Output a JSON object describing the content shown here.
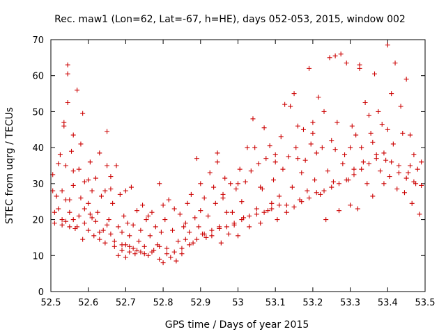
{
  "chart_data": {
    "type": "scatter",
    "title": "Rec. maw1 (Lon=62, Lat=-67, h=HE), days 052-053, 2015, window 002",
    "xlabel": "GPS time / Days of year 2015",
    "ylabel": "STEC from uqrg / TECUs",
    "xlim": [
      52.5,
      53.5
    ],
    "ylim": [
      0,
      70
    ],
    "xticks": [
      "52.5",
      "52.6",
      "52.7",
      "52.8",
      "52.9",
      "53",
      "53.1",
      "53.2",
      "53.3",
      "53.4",
      "53.5"
    ],
    "yticks": [
      "0",
      "10",
      "20",
      "30",
      "40",
      "50",
      "60",
      "70"
    ],
    "grid": false,
    "marker": "plus",
    "marker_color": "#cc0000",
    "series": [
      {
        "points": [
          [
            52.505,
            32.5
          ],
          [
            52.505,
            28.0
          ],
          [
            52.51,
            22.0
          ],
          [
            52.51,
            19.0
          ],
          [
            52.515,
            26.5
          ],
          [
            52.52,
            23.0
          ],
          [
            52.52,
            35.5
          ],
          [
            52.525,
            38.0
          ],
          [
            52.53,
            18.5
          ],
          [
            52.53,
            28.0
          ],
          [
            52.535,
            47.0
          ],
          [
            52.535,
            46.0
          ],
          [
            52.54,
            19.5
          ],
          [
            52.54,
            25.5
          ],
          [
            52.54,
            35.0
          ],
          [
            52.545,
            63.0
          ],
          [
            52.545,
            60.5
          ],
          [
            52.545,
            52.5
          ],
          [
            52.55,
            18.0
          ],
          [
            52.55,
            25.5
          ],
          [
            52.555,
            39.0
          ],
          [
            52.56,
            20.0
          ],
          [
            52.56,
            29.5
          ],
          [
            52.56,
            43.5
          ],
          [
            52.565,
            17.5
          ],
          [
            52.57,
            56.0
          ],
          [
            52.575,
            34.0
          ],
          [
            52.575,
            21.0
          ],
          [
            52.58,
            26.0
          ],
          [
            52.58,
            41.0
          ],
          [
            52.585,
            49.5
          ],
          [
            52.585,
            14.5
          ],
          [
            52.59,
            30.5
          ],
          [
            52.59,
            19.0
          ],
          [
            52.6,
            24.5
          ],
          [
            52.6,
            17.0
          ],
          [
            52.605,
            36.0
          ],
          [
            52.605,
            21.5
          ],
          [
            52.61,
            28.0
          ],
          [
            52.615,
            15.5
          ],
          [
            52.62,
            31.5
          ],
          [
            52.62,
            19.5
          ],
          [
            52.625,
            22.0
          ],
          [
            52.63,
            38.5
          ],
          [
            52.63,
            14.5
          ],
          [
            52.635,
            26.5
          ],
          [
            52.64,
            17.0
          ],
          [
            52.645,
            28.0
          ],
          [
            52.645,
            13.5
          ],
          [
            52.65,
            35.0
          ],
          [
            52.65,
            44.5
          ],
          [
            52.655,
            20.0
          ],
          [
            52.66,
            32.0
          ],
          [
            52.66,
            16.0
          ],
          [
            52.665,
            24.5
          ],
          [
            52.67,
            12.5
          ],
          [
            52.675,
            35.0
          ],
          [
            52.68,
            10.0
          ],
          [
            52.68,
            18.0
          ],
          [
            52.685,
            27.0
          ],
          [
            52.69,
            11.5
          ],
          [
            52.69,
            16.5
          ],
          [
            52.695,
            21.0
          ],
          [
            52.7,
            9.5
          ],
          [
            52.7,
            13.0
          ],
          [
            52.705,
            19.0
          ],
          [
            52.71,
            11.0
          ],
          [
            52.71,
            15.5
          ],
          [
            52.715,
            29.0
          ],
          [
            52.72,
            12.0
          ],
          [
            52.72,
            18.5
          ],
          [
            52.725,
            10.5
          ],
          [
            52.73,
            22.5
          ],
          [
            52.735,
            14.0
          ],
          [
            52.74,
            11.0
          ],
          [
            52.74,
            17.0
          ],
          [
            52.745,
            24.0
          ],
          [
            52.75,
            12.5
          ],
          [
            52.755,
            20.0
          ],
          [
            52.76,
            10.0
          ],
          [
            52.765,
            15.5
          ],
          [
            52.77,
            22.0
          ],
          [
            52.775,
            11.5
          ],
          [
            52.78,
            18.0
          ],
          [
            52.785,
            13.0
          ],
          [
            52.79,
            30.0
          ],
          [
            52.79,
            9.0
          ],
          [
            52.795,
            16.5
          ],
          [
            52.8,
            8.0
          ],
          [
            52.805,
            20.0
          ],
          [
            52.81,
            12.0
          ],
          [
            52.815,
            25.5
          ],
          [
            52.82,
            9.5
          ],
          [
            52.825,
            17.0
          ],
          [
            52.83,
            23.0
          ],
          [
            52.835,
            8.5
          ],
          [
            52.84,
            14.0
          ],
          [
            52.845,
            21.5
          ],
          [
            52.85,
            10.5
          ],
          [
            52.855,
            18.0
          ],
          [
            52.86,
            14.5
          ],
          [
            52.865,
            24.5
          ],
          [
            52.87,
            16.5
          ],
          [
            52.875,
            27.0
          ],
          [
            52.88,
            13.5
          ],
          [
            52.885,
            20.5
          ],
          [
            52.89,
            37.0
          ],
          [
            52.895,
            18.0
          ],
          [
            52.9,
            22.5
          ],
          [
            52.905,
            16.0
          ],
          [
            52.91,
            26.0
          ],
          [
            52.915,
            15.0
          ],
          [
            52.92,
            21.0
          ],
          [
            52.925,
            33.0
          ],
          [
            52.93,
            15.5
          ],
          [
            52.935,
            29.0
          ],
          [
            52.94,
            24.5
          ],
          [
            52.945,
            36.0
          ],
          [
            52.945,
            38.5
          ],
          [
            52.95,
            18.0
          ],
          [
            52.955,
            13.5
          ],
          [
            52.96,
            27.0
          ],
          [
            52.965,
            31.5
          ],
          [
            52.97,
            22.0
          ],
          [
            52.975,
            16.0
          ],
          [
            52.98,
            30.0
          ],
          [
            52.985,
            22.0
          ],
          [
            52.99,
            18.5
          ],
          [
            52.995,
            28.5
          ],
          [
            53.0,
            15.5
          ],
          [
            53.005,
            34.0
          ],
          [
            53.01,
            25.0
          ],
          [
            53.015,
            20.5
          ],
          [
            53.02,
            30.5
          ],
          [
            53.025,
            40.0
          ],
          [
            53.03,
            18.0
          ],
          [
            53.035,
            33.5
          ],
          [
            53.04,
            48.0
          ],
          [
            53.045,
            40.0
          ],
          [
            53.05,
            23.0
          ],
          [
            53.055,
            35.5
          ],
          [
            53.06,
            19.0
          ],
          [
            53.065,
            28.5
          ],
          [
            53.07,
            45.5
          ],
          [
            53.075,
            37.0
          ],
          [
            53.08,
            22.5
          ],
          [
            53.085,
            40.5
          ],
          [
            53.09,
            24.5
          ],
          [
            53.095,
            31.0
          ],
          [
            53.1,
            38.0
          ],
          [
            53.105,
            20.0
          ],
          [
            53.11,
            26.5
          ],
          [
            53.115,
            43.0
          ],
          [
            53.12,
            34.0
          ],
          [
            53.125,
            52.0
          ],
          [
            53.13,
            24.0
          ],
          [
            53.135,
            37.5
          ],
          [
            53.14,
            51.5
          ],
          [
            53.145,
            29.0
          ],
          [
            53.15,
            55.0
          ],
          [
            53.155,
            40.0
          ],
          [
            53.16,
            46.0
          ],
          [
            53.165,
            25.5
          ],
          [
            53.17,
            33.0
          ],
          [
            53.175,
            45.0
          ],
          [
            53.18,
            36.5
          ],
          [
            53.185,
            28.0
          ],
          [
            53.19,
            62.0
          ],
          [
            53.195,
            41.0
          ],
          [
            53.2,
            47.0
          ],
          [
            53.205,
            31.0
          ],
          [
            53.21,
            38.5
          ],
          [
            53.215,
            54.0
          ],
          [
            53.22,
            27.0
          ],
          [
            53.225,
            40.0
          ],
          [
            53.23,
            50.0
          ],
          [
            53.235,
            20.0
          ],
          [
            53.24,
            33.5
          ],
          [
            53.245,
            65.0
          ],
          [
            53.25,
            42.0
          ],
          [
            53.255,
            30.5
          ],
          [
            53.26,
            65.5
          ],
          [
            53.265,
            47.0
          ],
          [
            53.27,
            22.5
          ],
          [
            53.275,
            66.0
          ],
          [
            53.28,
            35.5
          ],
          [
            53.285,
            38.0
          ],
          [
            53.29,
            63.5
          ],
          [
            53.295,
            31.0
          ],
          [
            53.3,
            24.0
          ],
          [
            53.305,
            46.0
          ],
          [
            53.31,
            34.0
          ],
          [
            53.315,
            43.5
          ],
          [
            53.32,
            23.0
          ],
          [
            53.325,
            63.0
          ],
          [
            53.325,
            62.0
          ],
          [
            53.33,
            40.0
          ],
          [
            53.335,
            36.0
          ],
          [
            53.34,
            52.5
          ],
          [
            53.345,
            30.0
          ],
          [
            53.35,
            49.0
          ],
          [
            53.355,
            44.0
          ],
          [
            53.36,
            26.5
          ],
          [
            53.365,
            60.5
          ],
          [
            53.37,
            38.0
          ],
          [
            53.375,
            50.0
          ],
          [
            53.38,
            33.5
          ],
          [
            53.385,
            46.5
          ],
          [
            53.39,
            30.0
          ],
          [
            53.395,
            36.5
          ],
          [
            53.4,
            68.5
          ],
          [
            53.405,
            32.0
          ],
          [
            53.41,
            55.0
          ],
          [
            53.415,
            41.0
          ],
          [
            53.42,
            63.5
          ],
          [
            53.425,
            28.5
          ],
          [
            53.43,
            35.0
          ],
          [
            53.435,
            51.5
          ],
          [
            53.44,
            44.0
          ],
          [
            53.445,
            27.5
          ],
          [
            53.45,
            59.0
          ],
          [
            53.455,
            33.0
          ],
          [
            53.46,
            43.5
          ],
          [
            53.465,
            24.5
          ],
          [
            53.47,
            38.0
          ],
          [
            53.475,
            30.0
          ],
          [
            53.48,
            34.0
          ],
          [
            53.485,
            21.5
          ],
          [
            53.49,
            29.5
          ],
          [
            53.49,
            36.0
          ],
          [
            52.53,
            20.0
          ],
          [
            52.55,
            22.0
          ],
          [
            52.57,
            18.0
          ],
          [
            52.59,
            23.0
          ],
          [
            52.61,
            20.5
          ],
          [
            52.63,
            16.5
          ],
          [
            52.65,
            18.5
          ],
          [
            52.67,
            14.0
          ],
          [
            52.69,
            13.0
          ],
          [
            52.71,
            12.5
          ],
          [
            52.73,
            11.5
          ],
          [
            52.75,
            10.5
          ],
          [
            52.77,
            11.0
          ],
          [
            52.79,
            12.5
          ],
          [
            52.81,
            10.5
          ],
          [
            52.83,
            11.0
          ],
          [
            52.85,
            12.0
          ],
          [
            52.87,
            13.0
          ],
          [
            52.89,
            14.5
          ],
          [
            52.91,
            16.0
          ],
          [
            52.93,
            17.0
          ],
          [
            52.95,
            17.5
          ],
          [
            52.97,
            18.0
          ],
          [
            52.99,
            19.0
          ],
          [
            53.01,
            20.0
          ],
          [
            53.03,
            21.0
          ],
          [
            53.05,
            21.5
          ],
          [
            53.07,
            22.0
          ],
          [
            53.09,
            23.0
          ],
          [
            53.11,
            24.0
          ],
          [
            53.13,
            22.0
          ],
          [
            53.15,
            23.5
          ],
          [
            53.17,
            25.0
          ],
          [
            53.19,
            26.0
          ],
          [
            53.21,
            27.5
          ],
          [
            53.23,
            28.0
          ],
          [
            53.25,
            29.0
          ],
          [
            53.27,
            30.0
          ],
          [
            53.29,
            31.0
          ],
          [
            53.31,
            32.5
          ],
          [
            53.33,
            34.0
          ],
          [
            53.35,
            35.5
          ],
          [
            53.37,
            37.0
          ],
          [
            53.39,
            38.5
          ],
          [
            53.41,
            36.0
          ],
          [
            53.43,
            33.0
          ],
          [
            53.45,
            31.5
          ],
          [
            53.47,
            30.5
          ],
          [
            52.6,
            31.0
          ],
          [
            52.7,
            28.0
          ],
          [
            52.8,
            24.0
          ],
          [
            52.9,
            30.0
          ],
          [
            53.0,
            30.0
          ],
          [
            53.1,
            36.0
          ],
          [
            53.2,
            44.0
          ],
          [
            53.3,
            40.0
          ],
          [
            53.4,
            45.0
          ],
          [
            52.56,
            33.5
          ],
          [
            52.66,
            28.5
          ],
          [
            52.76,
            21.0
          ],
          [
            52.86,
            19.0
          ],
          [
            52.96,
            26.0
          ],
          [
            53.06,
            29.0
          ],
          [
            53.16,
            37.0
          ],
          [
            53.26,
            39.5
          ],
          [
            53.36,
            41.5
          ],
          [
            53.46,
            35.0
          ]
        ]
      }
    ]
  }
}
